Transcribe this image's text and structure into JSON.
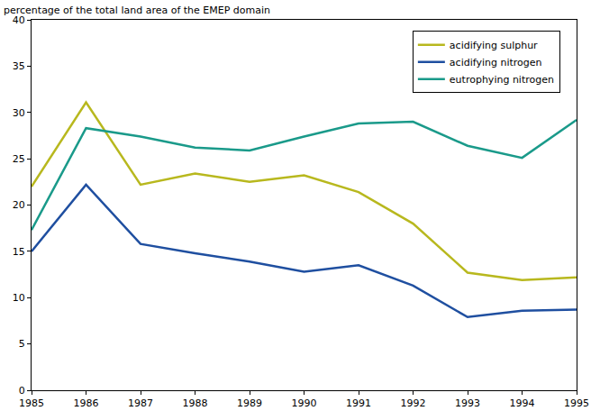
{
  "chart_data": {
    "type": "line",
    "y_label": "percentage of the total land area of the EMEP domain",
    "x": [
      1985,
      1986,
      1987,
      1988,
      1989,
      1990,
      1991,
      1992,
      1993,
      1994,
      1995
    ],
    "series": [
      {
        "name": "acidifying sulphur",
        "color": "#b8b81e",
        "values": [
          22,
          31.1,
          22.2,
          23.4,
          22.5,
          23.2,
          21.4,
          18,
          12.7,
          11.9,
          12.2
        ]
      },
      {
        "name": "acidifying nitrogen",
        "color": "#1f4fa0",
        "values": [
          15,
          22.2,
          15.8,
          14.8,
          13.9,
          12.8,
          13.5,
          11.3,
          7.9,
          8.6,
          8.7
        ]
      },
      {
        "name": "eutrophying nitrogen",
        "color": "#1a9a8a",
        "values": [
          17.3,
          28.3,
          27.4,
          26.2,
          25.9,
          27.4,
          28.8,
          29,
          26.4,
          25.1,
          29.2
        ]
      }
    ],
    "xlim": [
      1985,
      1995
    ],
    "xticks": [
      1985,
      1986,
      1987,
      1988,
      1989,
      1990,
      1991,
      1992,
      1993,
      1994,
      1995
    ],
    "ylim": [
      0,
      40
    ],
    "yticks": [
      0,
      5,
      10,
      15,
      20,
      25,
      30,
      35,
      40
    ],
    "grid": false,
    "legend": "upper right"
  }
}
